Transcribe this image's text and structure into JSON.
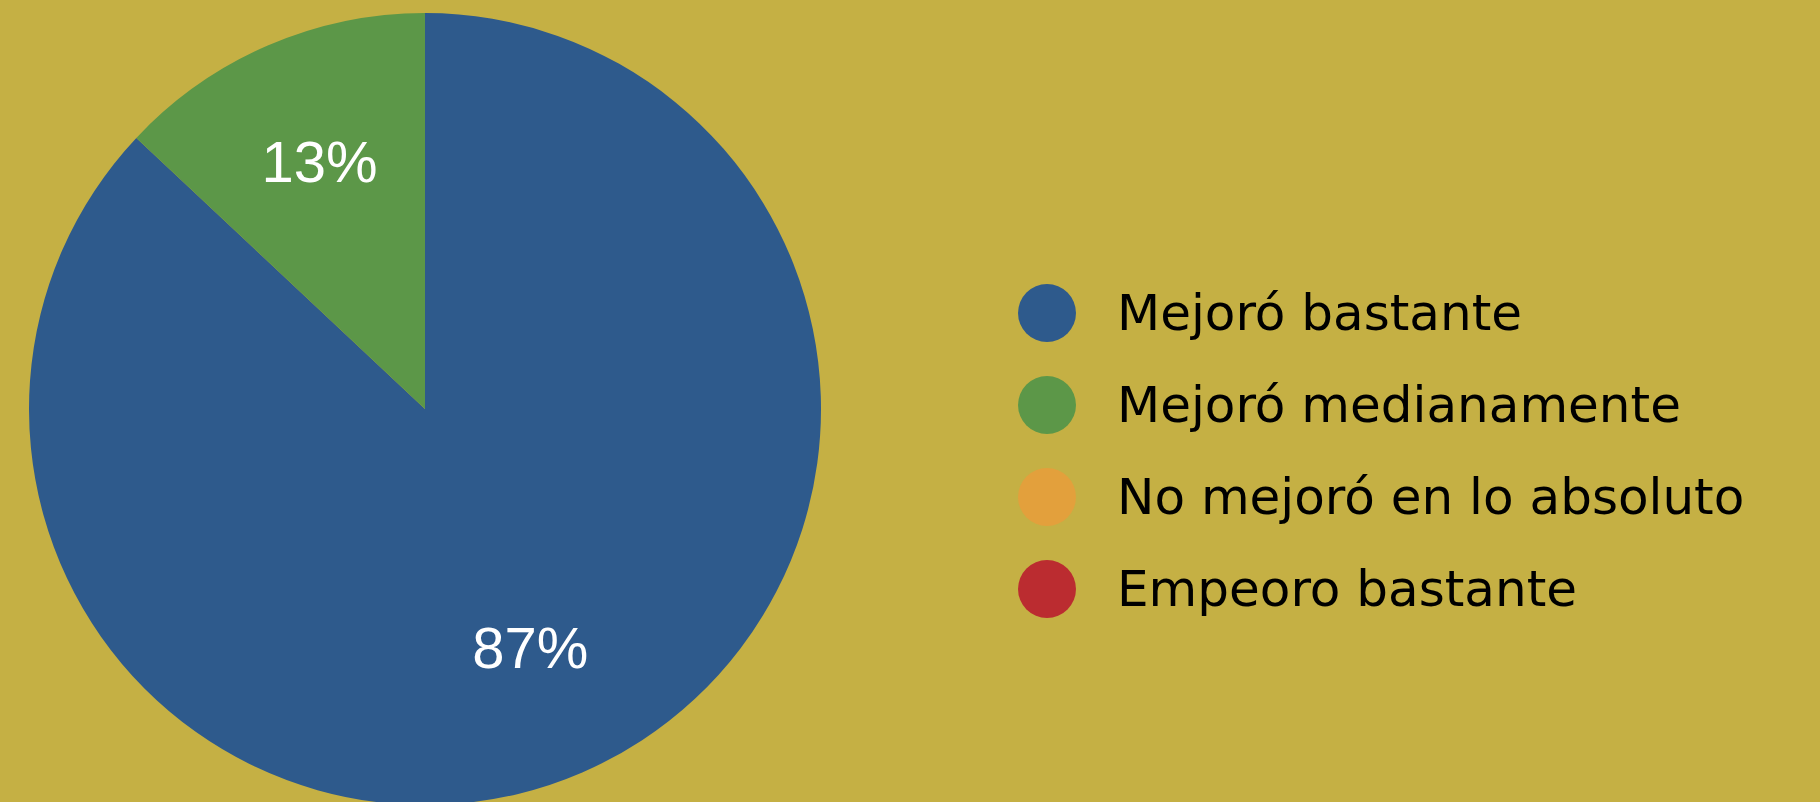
{
  "chart_data": {
    "type": "pie",
    "categories": [
      "Mejoró bastante",
      "Mejoró medianamente",
      "No mejoró en lo absoluto",
      "Empeoro bastante"
    ],
    "values": [
      87,
      13,
      0,
      0
    ],
    "colors": [
      "#2e5a8c",
      "#5c9748",
      "#e3a03c",
      "#bb2c30"
    ],
    "value_labels": [
      "87%",
      "13%",
      null,
      null
    ],
    "legend": "right"
  }
}
